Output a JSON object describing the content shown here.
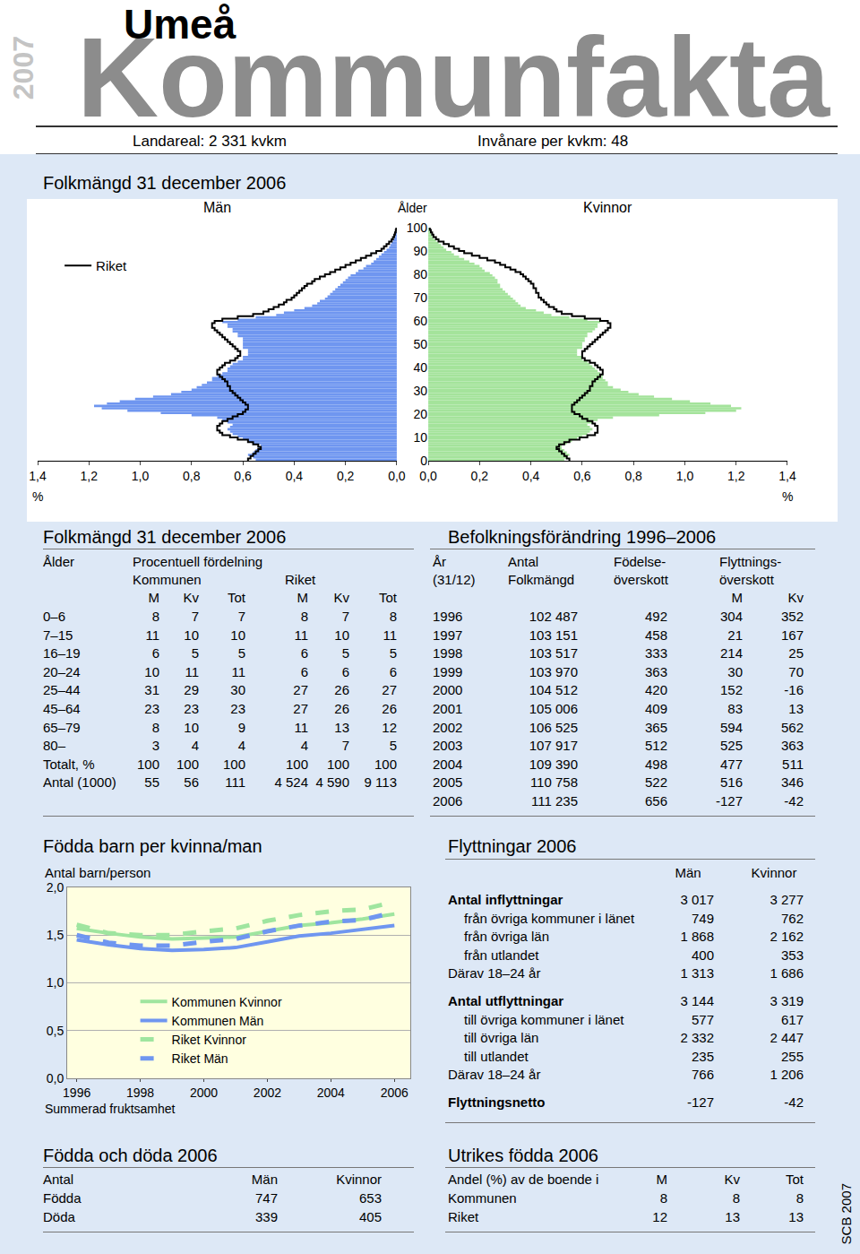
{
  "header": {
    "year": "2007",
    "municipality": "Umeå",
    "title": "Kommunfakta",
    "land_area": "Landareal: 2 331 kvkm",
    "density": "Invånare per kvkm: 48",
    "footer": "SCB 2007"
  },
  "chart_data": [
    {
      "type": "bar",
      "orientation": "horizontal",
      "title": "Folkmängd 31 december 2006",
      "y_label": "Ålder",
      "x_label": "%",
      "legend": "top left",
      "grid": false,
      "y": [
        0,
        1,
        2,
        3,
        4,
        5,
        6,
        7,
        8,
        9,
        10,
        11,
        12,
        13,
        14,
        15,
        16,
        17,
        18,
        19,
        20,
        21,
        22,
        23,
        24,
        25,
        26,
        27,
        28,
        29,
        30,
        31,
        32,
        33,
        34,
        35,
        36,
        37,
        38,
        39,
        40,
        41,
        42,
        43,
        44,
        45,
        46,
        47,
        48,
        49,
        50,
        51,
        52,
        53,
        54,
        55,
        56,
        57,
        58,
        59,
        60,
        61,
        62,
        63,
        64,
        65,
        66,
        67,
        68,
        69,
        70,
        71,
        72,
        73,
        74,
        75,
        76,
        77,
        78,
        79,
        80,
        81,
        82,
        83,
        84,
        85,
        86,
        87,
        88,
        89,
        90,
        91,
        92,
        93,
        94,
        95,
        96,
        97,
        98,
        99,
        100
      ],
      "ylim": [
        0,
        100
      ],
      "yticks": [
        0,
        10,
        20,
        30,
        40,
        50,
        60,
        70,
        80,
        90,
        100
      ],
      "xlim": [
        0,
        1.4
      ],
      "xticks": [
        {
          "value": 0,
          "label": "0,0"
        },
        {
          "value": 0.2,
          "label": "0,2"
        },
        {
          "value": 0.4,
          "label": "0,4"
        },
        {
          "value": 0.6,
          "label": "0,6"
        },
        {
          "value": 0.8,
          "label": "0,8"
        },
        {
          "value": 1.0,
          "label": "1,0"
        },
        {
          "value": 1.2,
          "label": "1,2"
        },
        {
          "value": 1.4,
          "label": "1,4"
        }
      ],
      "series": [
        {
          "name": "Män",
          "type": "bar",
          "color": "#6f96f0",
          "values": [
            0.55,
            0.56,
            0.58,
            0.56,
            0.55,
            0.54,
            0.53,
            0.56,
            0.58,
            0.6,
            0.62,
            0.64,
            0.65,
            0.66,
            0.65,
            0.64,
            0.66,
            0.68,
            0.7,
            0.8,
            0.92,
            1.05,
            1.15,
            1.18,
            1.13,
            1.08,
            1.02,
            0.95,
            0.88,
            0.84,
            0.8,
            0.78,
            0.76,
            0.74,
            0.72,
            0.72,
            0.7,
            0.68,
            0.66,
            0.66,
            0.65,
            0.64,
            0.62,
            0.6,
            0.6,
            0.58,
            0.58,
            0.58,
            0.6,
            0.6,
            0.6,
            0.6,
            0.6,
            0.62,
            0.62,
            0.64,
            0.64,
            0.66,
            0.66,
            0.68,
            0.62,
            0.55,
            0.47,
            0.44,
            0.4,
            0.36,
            0.33,
            0.31,
            0.3,
            0.28,
            0.27,
            0.26,
            0.25,
            0.24,
            0.23,
            0.22,
            0.21,
            0.2,
            0.19,
            0.18,
            0.16,
            0.15,
            0.13,
            0.12,
            0.1,
            0.09,
            0.08,
            0.07,
            0.06,
            0.05,
            0.04,
            0.03,
            0.025,
            0.02,
            0.015,
            0.01,
            0.008,
            0.005,
            0.003,
            0.002,
            0.001
          ]
        },
        {
          "name": "Kvinnor",
          "type": "bar",
          "axis": "x2",
          "color": "#a4e39b",
          "values": [
            0.53,
            0.54,
            0.55,
            0.54,
            0.53,
            0.52,
            0.52,
            0.54,
            0.56,
            0.58,
            0.6,
            0.62,
            0.63,
            0.64,
            0.63,
            0.62,
            0.64,
            0.66,
            0.72,
            0.9,
            1.08,
            1.2,
            1.22,
            1.18,
            1.1,
            1.02,
            0.95,
            0.88,
            0.82,
            0.78,
            0.75,
            0.72,
            0.7,
            0.7,
            0.69,
            0.68,
            0.68,
            0.67,
            0.66,
            0.65,
            0.64,
            0.63,
            0.62,
            0.6,
            0.6,
            0.58,
            0.58,
            0.58,
            0.6,
            0.6,
            0.6,
            0.61,
            0.61,
            0.62,
            0.62,
            0.64,
            0.65,
            0.66,
            0.66,
            0.67,
            0.62,
            0.55,
            0.48,
            0.45,
            0.42,
            0.38,
            0.36,
            0.35,
            0.34,
            0.33,
            0.32,
            0.31,
            0.3,
            0.29,
            0.28,
            0.28,
            0.27,
            0.27,
            0.26,
            0.25,
            0.24,
            0.22,
            0.21,
            0.2,
            0.18,
            0.16,
            0.14,
            0.12,
            0.1,
            0.09,
            0.07,
            0.06,
            0.05,
            0.04,
            0.03,
            0.02,
            0.015,
            0.01,
            0.006,
            0.003,
            0.002
          ]
        },
        {
          "name": "Riket",
          "type": "line",
          "color": "#000000",
          "values": [
            0.58,
            0.57,
            0.56,
            0.55,
            0.54,
            0.53,
            0.54,
            0.56,
            0.58,
            0.62,
            0.65,
            0.68,
            0.69,
            0.7,
            0.7,
            0.69,
            0.68,
            0.66,
            0.64,
            0.62,
            0.6,
            0.59,
            0.58,
            0.58,
            0.59,
            0.6,
            0.61,
            0.62,
            0.63,
            0.64,
            0.65,
            0.65,
            0.66,
            0.66,
            0.67,
            0.68,
            0.69,
            0.7,
            0.7,
            0.69,
            0.68,
            0.67,
            0.65,
            0.63,
            0.62,
            0.61,
            0.61,
            0.62,
            0.63,
            0.64,
            0.65,
            0.66,
            0.67,
            0.68,
            0.69,
            0.7,
            0.71,
            0.72,
            0.72,
            0.71,
            0.68,
            0.62,
            0.56,
            0.52,
            0.5,
            0.48,
            0.46,
            0.44,
            0.43,
            0.41,
            0.4,
            0.39,
            0.38,
            0.37,
            0.36,
            0.35,
            0.33,
            0.32,
            0.3,
            0.28,
            0.26,
            0.24,
            0.22,
            0.2,
            0.18,
            0.16,
            0.14,
            0.12,
            0.1,
            0.08,
            0.06,
            0.05,
            0.04,
            0.03,
            0.02,
            0.015,
            0.01,
            0.007,
            0.004,
            0.002,
            0.001
          ]
        },
        {
          "name": "Riket",
          "type": "line",
          "axis": "x2",
          "color": "#000000",
          "values": [
            0.55,
            0.54,
            0.53,
            0.52,
            0.51,
            0.5,
            0.51,
            0.53,
            0.55,
            0.59,
            0.62,
            0.65,
            0.66,
            0.66,
            0.66,
            0.65,
            0.64,
            0.62,
            0.6,
            0.59,
            0.57,
            0.56,
            0.56,
            0.56,
            0.57,
            0.58,
            0.59,
            0.6,
            0.61,
            0.62,
            0.63,
            0.63,
            0.64,
            0.64,
            0.65,
            0.66,
            0.67,
            0.68,
            0.68,
            0.67,
            0.66,
            0.65,
            0.63,
            0.61,
            0.6,
            0.6,
            0.6,
            0.61,
            0.62,
            0.63,
            0.64,
            0.65,
            0.66,
            0.67,
            0.68,
            0.69,
            0.7,
            0.71,
            0.71,
            0.7,
            0.67,
            0.61,
            0.56,
            0.52,
            0.5,
            0.49,
            0.47,
            0.46,
            0.45,
            0.44,
            0.43,
            0.43,
            0.42,
            0.42,
            0.41,
            0.41,
            0.4,
            0.39,
            0.38,
            0.37,
            0.36,
            0.34,
            0.32,
            0.3,
            0.28,
            0.26,
            0.23,
            0.2,
            0.17,
            0.14,
            0.12,
            0.1,
            0.08,
            0.06,
            0.04,
            0.03,
            0.02,
            0.015,
            0.01,
            0.006,
            0.004
          ]
        }
      ]
    },
    {
      "type": "line",
      "title": "Födda barn per kvinna/man",
      "y_label": "Antal barn/person",
      "x_label": "Summerad fruktsamhet",
      "legend": "bottom",
      "grid": true,
      "x": [
        1996,
        1997,
        1998,
        1999,
        2000,
        2001,
        2002,
        2003,
        2004,
        2005,
        2006
      ],
      "xlim": [
        1995.7,
        2006.5
      ],
      "xticks": [
        1996,
        1998,
        2000,
        2002,
        2004,
        2006
      ],
      "ylim": [
        0,
        2
      ],
      "yticks": [
        {
          "value": 0,
          "label": "0,0"
        },
        {
          "value": 0.5,
          "label": "0,5"
        },
        {
          "value": 1,
          "label": "1,0"
        },
        {
          "value": 1.5,
          "label": "1,5"
        },
        {
          "value": 2,
          "label": "2,0"
        }
      ],
      "series": [
        {
          "name": "Kommunen Kvinnor",
          "color": "#9fe59f",
          "line_style": "solid",
          "values": [
            1.57,
            1.52,
            1.48,
            1.46,
            1.47,
            1.48,
            1.54,
            1.6,
            1.63,
            1.67,
            1.72
          ]
        },
        {
          "name": "Kommunen Män",
          "color": "#6f96f0",
          "line_style": "solid",
          "values": [
            1.45,
            1.4,
            1.36,
            1.34,
            1.35,
            1.37,
            1.43,
            1.49,
            1.52,
            1.56,
            1.6
          ]
        },
        {
          "name": "Riket Kvinnor",
          "color": "#9fe59f",
          "line_style": "dashed",
          "values": [
            1.61,
            1.52,
            1.5,
            1.5,
            1.54,
            1.57,
            1.65,
            1.71,
            1.75,
            1.77,
            1.85
          ]
        },
        {
          "name": "Riket Män",
          "color": "#6f96f0",
          "line_style": "dashed",
          "values": [
            1.5,
            1.42,
            1.39,
            1.39,
            1.43,
            1.46,
            1.54,
            1.6,
            1.64,
            1.66,
            1.74
          ]
        }
      ]
    }
  ],
  "age_table": {
    "title": "Folkmängd 31 december 2006",
    "header": [
      "Ålder",
      "Procentuell fördelning"
    ],
    "groups": [
      "Kommunen",
      "Riket"
    ],
    "columns": [
      "M",
      "Kv",
      "Tot",
      "M",
      "Kv",
      "Tot"
    ],
    "rows": [
      [
        "0–6",
        8,
        7,
        7,
        8,
        7,
        8
      ],
      [
        "7–15",
        11,
        10,
        10,
        11,
        10,
        11
      ],
      [
        "16–19",
        6,
        5,
        5,
        6,
        5,
        5
      ],
      [
        "20–24",
        10,
        11,
        11,
        6,
        6,
        6
      ],
      [
        "25–44",
        31,
        29,
        30,
        27,
        26,
        27
      ],
      [
        "45–64",
        23,
        23,
        23,
        27,
        26,
        26
      ],
      [
        "65–79",
        8,
        10,
        9,
        11,
        13,
        12
      ],
      [
        "80–",
        3,
        4,
        4,
        4,
        7,
        5
      ],
      [
        "Totalt, %",
        100,
        100,
        100,
        100,
        100,
        100
      ],
      [
        "Antal (1000)",
        55,
        56,
        111,
        "4 524",
        "4 590",
        "9 113"
      ]
    ]
  },
  "change_table": {
    "title": "Befolkningsförändring 1996–2006",
    "header_rows": [
      [
        "År",
        "Antal",
        "Födelse-",
        "Flyttnings-"
      ],
      [
        "(31/12)",
        "Folkmängd",
        "överskott",
        "överskott"
      ]
    ],
    "subheader": [
      "M",
      "Kv"
    ],
    "rows": [
      [
        1996,
        "102 487",
        492,
        304,
        352
      ],
      [
        1997,
        "103 151",
        458,
        21,
        167
      ],
      [
        1998,
        "103 517",
        333,
        214,
        25
      ],
      [
        1999,
        "103 970",
        363,
        30,
        70
      ],
      [
        2000,
        "104 512",
        420,
        152,
        -16
      ],
      [
        2001,
        "105 006",
        409,
        83,
        13
      ],
      [
        2002,
        "106 525",
        365,
        594,
        562
      ],
      [
        2003,
        "107 917",
        512,
        525,
        363
      ],
      [
        2004,
        "109 390",
        498,
        477,
        511
      ],
      [
        2005,
        "110 758",
        522,
        516,
        346
      ],
      [
        2006,
        "111 235",
        656,
        -127,
        -42
      ]
    ]
  },
  "migration_table": {
    "title": "Flyttningar 2006",
    "columns": [
      "Män",
      "Kvinnor"
    ],
    "groups": [
      {
        "head": [
          "Antal inflyttningar",
          "3 017",
          "3 277"
        ],
        "items": [
          [
            "från övriga kommuner i länet",
            749,
            762
          ],
          [
            "från övriga län",
            "1 868",
            "2 162"
          ],
          [
            "från utlandet",
            400,
            353
          ]
        ],
        "of_which": [
          "Därav 18–24 år",
          "1 313",
          "1 686"
        ]
      },
      {
        "head": [
          "Antal utflyttningar",
          "3 144",
          "3 319"
        ],
        "items": [
          [
            "till övriga kommuner i länet",
            577,
            617
          ],
          [
            "till övriga län",
            "2 332",
            "2 447"
          ],
          [
            "till utlandet",
            235,
            255
          ]
        ],
        "of_which": [
          "Därav 18–24 år",
          766,
          "1 206"
        ]
      }
    ],
    "net": [
      "Flyttningsnetto",
      -127,
      -42
    ]
  },
  "births_deaths": {
    "title": "Födda och döda 2006",
    "header": [
      "Antal",
      "Män",
      "Kvinnor"
    ],
    "rows": [
      [
        "Födda",
        747,
        653
      ],
      [
        "Döda",
        339,
        405
      ]
    ]
  },
  "foreign_born": {
    "title": "Utrikes födda 2006",
    "header": [
      "Andel (%) av de boende i",
      "M",
      "Kv",
      "Tot"
    ],
    "rows": [
      [
        "Kommunen",
        8,
        8,
        8
      ],
      [
        "Riket",
        12,
        13,
        13
      ]
    ]
  }
}
